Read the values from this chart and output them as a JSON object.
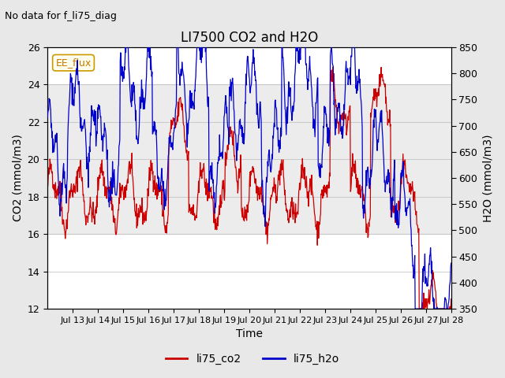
{
  "title": "LI7500 CO2 and H2O",
  "subtitle": "No data for f_li75_diag",
  "xlabel": "Time",
  "ylabel_left": "CO2 (mmol/m3)",
  "ylabel_right": "H2O (mmol/m3)",
  "ylim_left": [
    12,
    26
  ],
  "ylim_right": [
    350,
    850
  ],
  "yticks_left": [
    12,
    14,
    16,
    18,
    20,
    22,
    24,
    26
  ],
  "yticks_right": [
    350,
    400,
    450,
    500,
    550,
    600,
    650,
    700,
    750,
    800,
    850
  ],
  "x_tick_positions": [
    1,
    2,
    3,
    4,
    5,
    6,
    7,
    8,
    9,
    10,
    11,
    12,
    13,
    14,
    15,
    16
  ],
  "x_tick_labels": [
    "Jul 13",
    "Jul 14",
    "Jul 15",
    "Jul 16",
    "Jul 17",
    "Jul 18",
    "Jul 19",
    "Jul 20",
    "Jul 21",
    "Jul 22",
    "Jul 23",
    "Jul 24",
    "Jul 25",
    "Jul 26",
    "Jul 27",
    "Jul 28"
  ],
  "annotation_box": "EE_flux",
  "bg_color": "#e8e8e8",
  "plot_bg_color": "#ffffff",
  "co2_color": "#cc0000",
  "h2o_color": "#0000cc",
  "legend_labels": [
    "li75_co2",
    "li75_h2o"
  ],
  "xlim": [
    0,
    16
  ]
}
